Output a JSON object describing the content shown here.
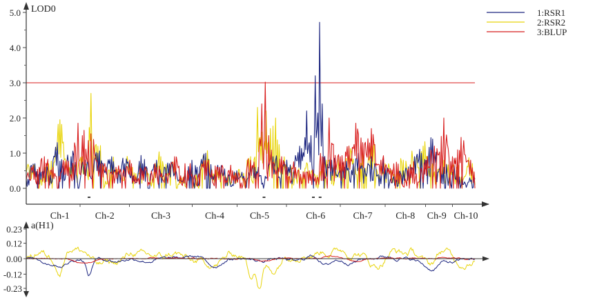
{
  "chart_data": [
    {
      "type": "line",
      "ylabel": "LOD0",
      "ylim": [
        0,
        5.0
      ],
      "y_ticks": [
        "0.0",
        "1.0",
        "2.0",
        "3.0",
        "4.0",
        "5.0"
      ],
      "y_tick_values": [
        0,
        1,
        2,
        3,
        4,
        5
      ],
      "threshold": 3.0,
      "x_range": [
        0,
        100
      ],
      "chromosomes": [
        {
          "label": "Ch-1",
          "pos": 7.5
        },
        {
          "label": "Ch-2",
          "pos": 17.5
        },
        {
          "label": "Ch-3",
          "pos": 30
        },
        {
          "label": "Ch-4",
          "pos": 42
        },
        {
          "label": "Ch-5",
          "pos": 52
        },
        {
          "label": "Ch-6",
          "pos": 64.5
        },
        {
          "label": "Ch-7",
          "pos": 75
        },
        {
          "label": "Ch-8",
          "pos": 84.5
        },
        {
          "label": "Ch-9",
          "pos": 91.5
        },
        {
          "label": "Ch-10",
          "pos": 98
        }
      ],
      "qtl_marks": [
        14,
        53,
        64,
        65.5
      ],
      "series": [
        {
          "name": "1:RSR1",
          "color": "#1a237e",
          "peaks": [
            [
              2,
              0.7
            ],
            [
              4,
              0.6
            ],
            [
              7,
              1.3
            ],
            [
              10,
              0.9
            ],
            [
              13,
              0.8
            ],
            [
              16,
              1.0
            ],
            [
              19,
              0.9
            ],
            [
              22,
              0.7
            ],
            [
              26,
              0.7
            ],
            [
              29,
              0.8
            ],
            [
              32,
              0.7
            ],
            [
              37,
              0.8
            ],
            [
              40,
              1.0
            ],
            [
              43,
              0.6
            ],
            [
              47,
              0.5
            ],
            [
              51,
              0.6
            ],
            [
              55,
              0.9
            ],
            [
              58,
              0.8
            ],
            [
              61,
              1.2
            ],
            [
              62.5,
              2.2
            ],
            [
              63.5,
              1.5
            ],
            [
              64.5,
              3.2
            ],
            [
              65.4,
              4.72
            ],
            [
              66,
              2.4
            ],
            [
              68,
              0.8
            ],
            [
              71,
              0.6
            ],
            [
              74,
              1.0
            ],
            [
              77,
              0.9
            ],
            [
              80,
              0.6
            ],
            [
              84,
              0.5
            ],
            [
              86.5,
              0.9
            ],
            [
              88,
              1.0
            ],
            [
              90.5,
              1.4
            ],
            [
              93,
              0.6
            ],
            [
              96,
              0.5
            ]
          ]
        },
        {
          "name": "2:RSR2",
          "color": "#e8d40a",
          "peaks": [
            [
              1,
              0.6
            ],
            [
              5,
              0.7
            ],
            [
              7.5,
              1.95
            ],
            [
              10,
              0.6
            ],
            [
              12.5,
              0.9
            ],
            [
              14.5,
              2.7
            ],
            [
              16,
              1.2
            ],
            [
              19,
              0.7
            ],
            [
              23,
              0.8
            ],
            [
              26,
              0.6
            ],
            [
              30,
              0.9
            ],
            [
              33,
              0.7
            ],
            [
              37,
              0.5
            ],
            [
              40,
              0.9
            ],
            [
              43,
              0.5
            ],
            [
              47,
              0.4
            ],
            [
              50,
              0.9
            ],
            [
              51.5,
              2.3
            ],
            [
              52.5,
              1.6
            ],
            [
              53.5,
              2.2
            ],
            [
              54.5,
              1.7
            ],
            [
              55.5,
              2.0
            ],
            [
              57,
              0.8
            ],
            [
              60,
              0.6
            ],
            [
              63,
              0.5
            ],
            [
              67,
              0.8
            ],
            [
              70,
              0.6
            ],
            [
              72,
              1.2
            ],
            [
              75,
              1.0
            ],
            [
              77,
              1.2
            ],
            [
              80,
              0.7
            ],
            [
              84,
              0.8
            ],
            [
              86.5,
              0.9
            ],
            [
              88.5,
              1.2
            ],
            [
              90,
              0.7
            ],
            [
              93,
              0.8
            ],
            [
              96,
              0.6
            ],
            [
              99,
              0.7
            ]
          ]
        },
        {
          "name": "3:BLUP",
          "color": "#d81e1e",
          "peaks": [
            [
              2,
              0.5
            ],
            [
              4,
              0.9
            ],
            [
              6,
              0.6
            ],
            [
              9,
              0.8
            ],
            [
              11.5,
              1.85
            ],
            [
              12.5,
              1.5
            ],
            [
              14.5,
              1.55
            ],
            [
              17,
              0.7
            ],
            [
              20,
              0.6
            ],
            [
              23,
              0.8
            ],
            [
              26,
              0.5
            ],
            [
              29,
              0.6
            ],
            [
              33,
              0.9
            ],
            [
              36,
              0.5
            ],
            [
              40,
              0.8
            ],
            [
              43,
              0.6
            ],
            [
              46,
              0.5
            ],
            [
              50,
              0.8
            ],
            [
              52.5,
              2.4
            ],
            [
              53.2,
              3.02
            ],
            [
              54,
              1.5
            ],
            [
              57,
              0.9
            ],
            [
              60,
              0.6
            ],
            [
              63,
              0.5
            ],
            [
              66,
              0.9
            ],
            [
              67.5,
              2.0
            ],
            [
              70,
              0.9
            ],
            [
              72,
              1.2
            ],
            [
              73.5,
              1.85
            ],
            [
              75,
              1.3
            ],
            [
              77,
              1.7
            ],
            [
              79,
              0.8
            ],
            [
              82,
              0.7
            ],
            [
              86,
              0.6
            ],
            [
              89,
              0.8
            ],
            [
              91,
              1.2
            ],
            [
              93,
              2.0
            ],
            [
              95,
              0.9
            ],
            [
              97,
              1.45
            ],
            [
              99,
              0.8
            ]
          ]
        }
      ]
    },
    {
      "type": "line",
      "ylabel": "a(H1)",
      "ylim": [
        -0.23,
        0.23
      ],
      "y_ticks": [
        "0.23",
        "0.12",
        "0.00",
        "-0.12",
        "-0.23"
      ],
      "y_tick_values": [
        0.23,
        0.12,
        0.0,
        -0.12,
        -0.23
      ],
      "x_range": [
        0,
        100
      ],
      "series": [
        {
          "name": "1:RSR1",
          "color": "#1a237e",
          "features": [
            [
              5,
              -0.03
            ],
            [
              8,
              -0.05
            ],
            [
              14,
              -0.13
            ],
            [
              20,
              -0.02
            ],
            [
              27,
              -0.02
            ],
            [
              37,
              0.02
            ],
            [
              42,
              -0.06
            ],
            [
              52,
              -0.02
            ],
            [
              60,
              -0.02
            ],
            [
              65,
              0.08
            ],
            [
              66,
              -0.1
            ],
            [
              72,
              -0.03
            ],
            [
              80,
              0.02
            ],
            [
              88,
              -0.02
            ],
            [
              90.5,
              -0.08
            ],
            [
              95,
              -0.03
            ]
          ]
        },
        {
          "name": "2:RSR2",
          "color": "#e8d40a",
          "features": [
            [
              3,
              0.05
            ],
            [
              7.5,
              -0.13
            ],
            [
              10,
              0.08
            ],
            [
              13,
              0.05
            ],
            [
              16,
              -0.05
            ],
            [
              20,
              -0.03
            ],
            [
              24,
              0.05
            ],
            [
              28,
              0.02
            ],
            [
              33,
              0.04
            ],
            [
              38,
              -0.03
            ],
            [
              42,
              -0.05
            ],
            [
              46,
              0.04
            ],
            [
              50,
              -0.12
            ],
            [
              52,
              -0.22
            ],
            [
              55,
              -0.1
            ],
            [
              58,
              0.04
            ],
            [
              62,
              0.04
            ],
            [
              66,
              0.06
            ],
            [
              70,
              0.07
            ],
            [
              74,
              0.04
            ],
            [
              78,
              -0.06
            ],
            [
              82,
              0.06
            ],
            [
              86,
              0.05
            ],
            [
              90,
              -0.05
            ],
            [
              93,
              0.07
            ],
            [
              97,
              -0.04
            ]
          ]
        },
        {
          "name": "3:BLUP",
          "color": "#d81e1e",
          "features": [
            [
              12,
              -0.03
            ],
            [
              14.5,
              -0.02
            ],
            [
              53,
              -0.02
            ],
            [
              67.5,
              0.02
            ],
            [
              73.5,
              -0.02
            ],
            [
              93,
              0.01
            ]
          ]
        }
      ]
    }
  ]
}
